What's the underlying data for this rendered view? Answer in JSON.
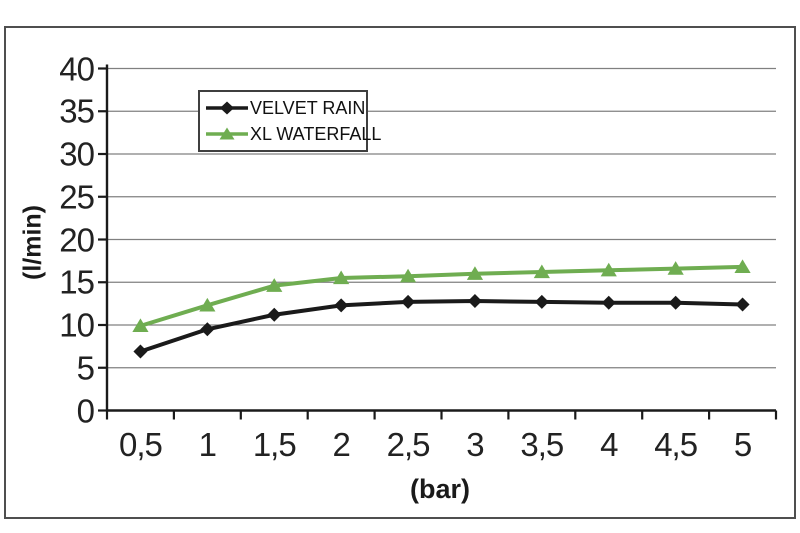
{
  "chart_data": {
    "type": "line",
    "title": "",
    "xlabel": "(bar)",
    "ylabel": "(l/min)",
    "x_labels": [
      "0,5",
      "1",
      "1,5",
      "2",
      "2,5",
      "3",
      "3,5",
      "4",
      "4,5",
      "5"
    ],
    "x_values": [
      0.5,
      1,
      1.5,
      2,
      2.5,
      3,
      3.5,
      4,
      4.5,
      5
    ],
    "series": [
      {
        "name": "VELVET RAIN",
        "color": "#1a1a1a",
        "marker": "diamond",
        "values": [
          6.9,
          9.5,
          11.2,
          12.3,
          12.7,
          12.8,
          12.7,
          12.6,
          12.6,
          12.4
        ]
      },
      {
        "name": "XL WATERFALL",
        "color": "#6fad51",
        "marker": "triangle",
        "values": [
          9.9,
          12.3,
          14.6,
          15.5,
          15.7,
          16.0,
          16.2,
          16.4,
          16.6,
          16.8
        ]
      }
    ],
    "ylim": [
      0,
      40
    ],
    "ytick_step": 5,
    "grid": true,
    "legend_position": "top-center",
    "colors": {
      "gridline": "#808080",
      "axis": "#1a1a1a",
      "frame_border": "#4f4f4f",
      "tick_text": "#222222"
    }
  }
}
